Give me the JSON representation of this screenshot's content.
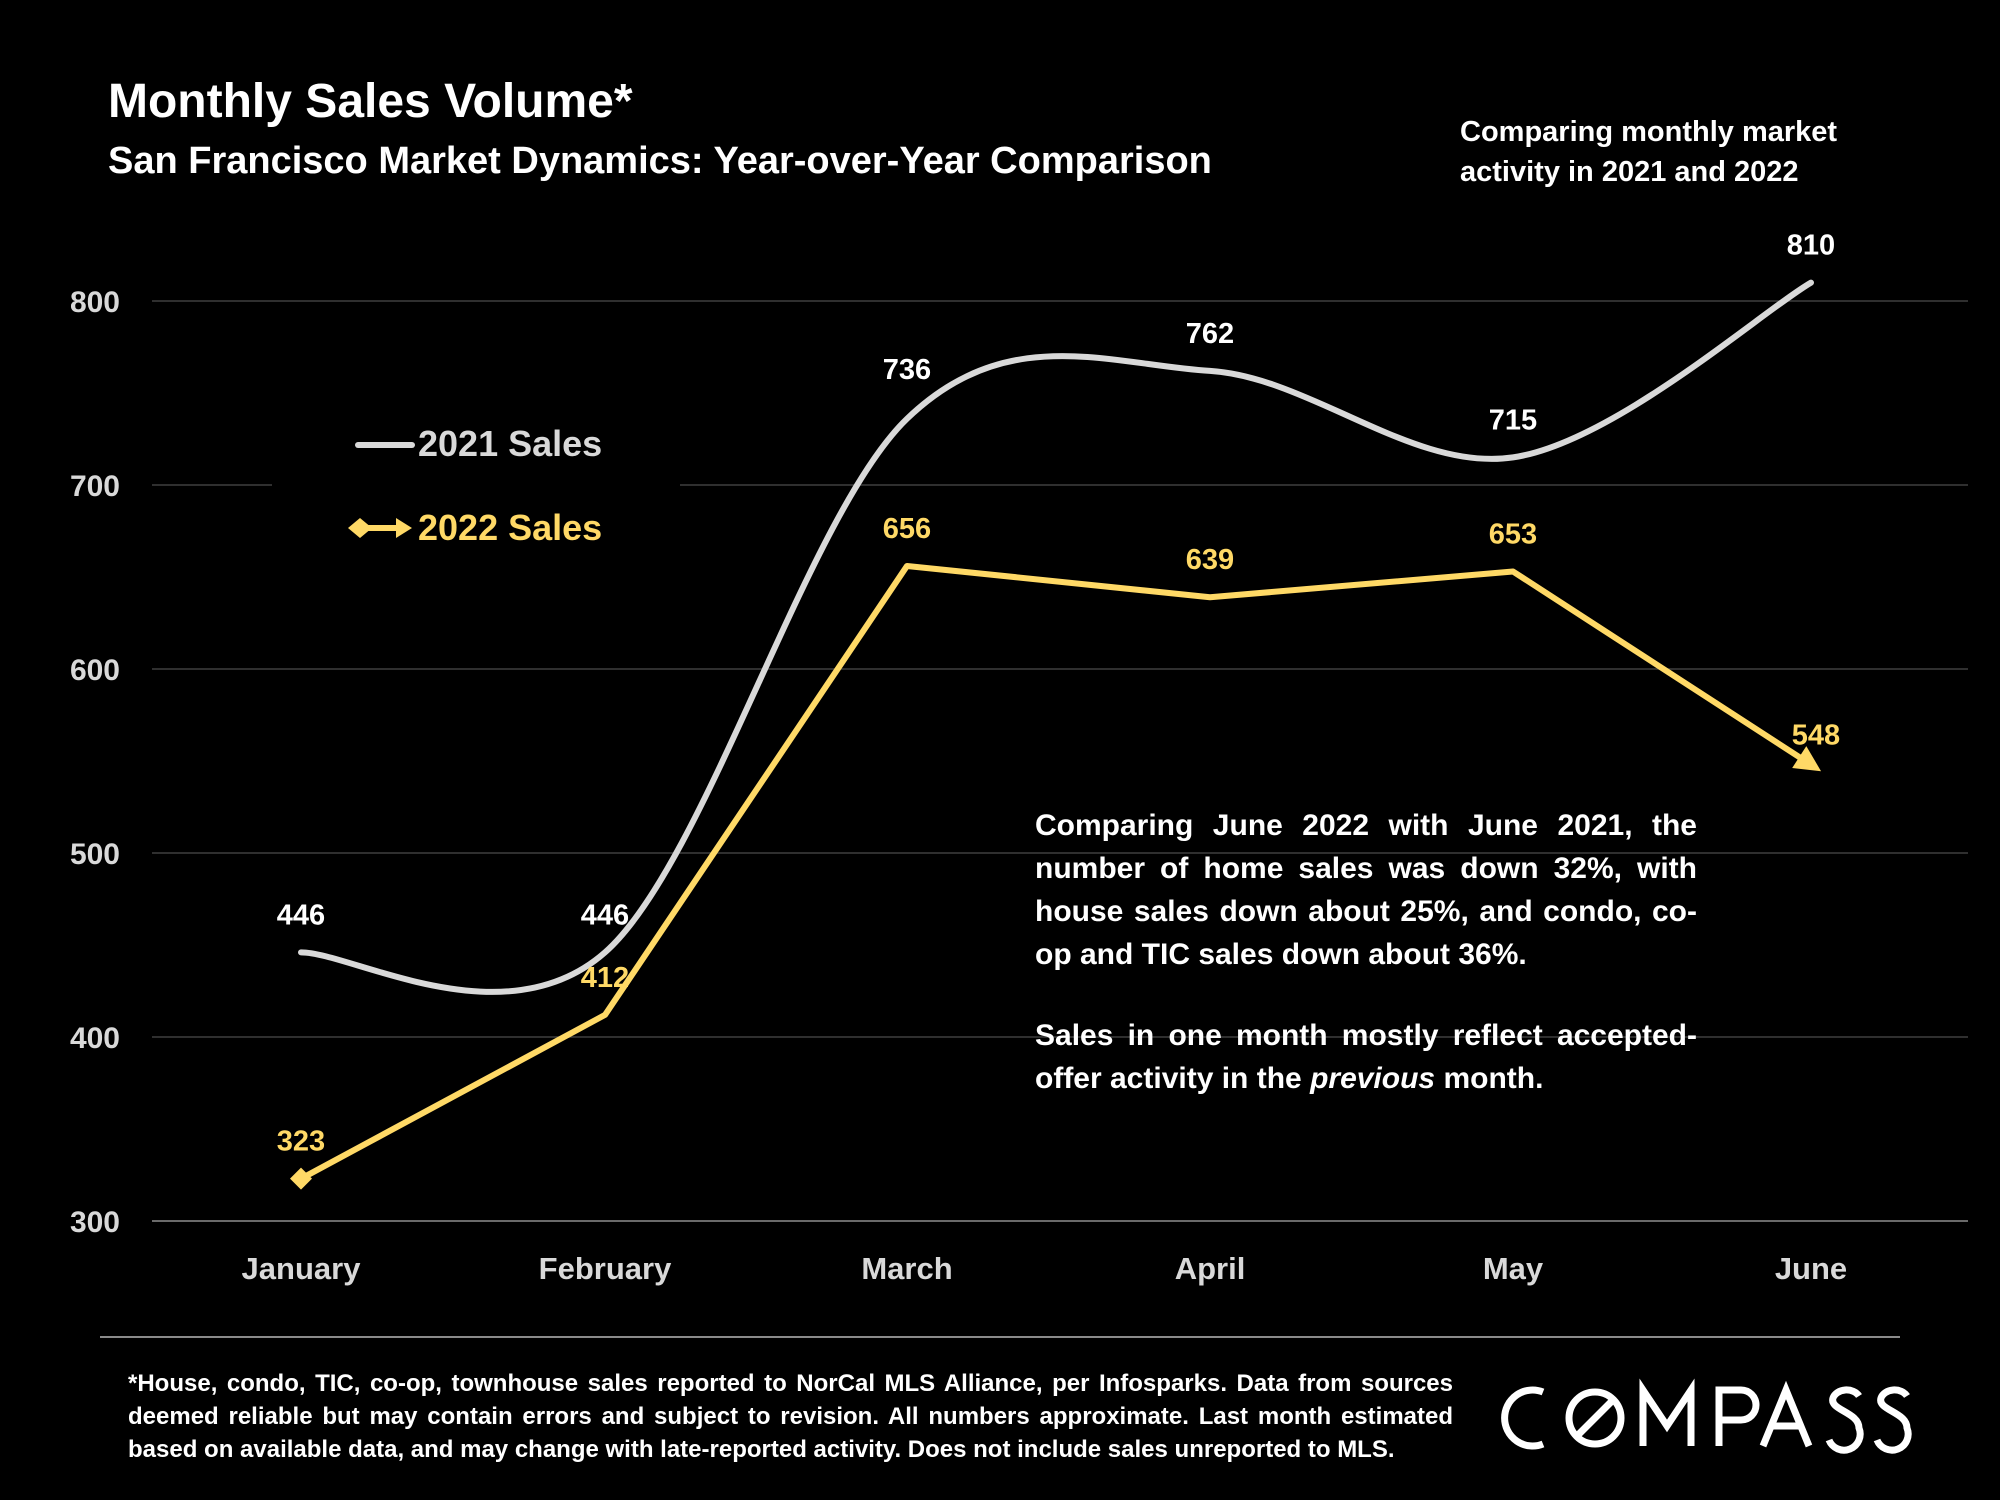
{
  "header": {
    "title": "Monthly Sales Volume*",
    "subtitle": "San Francisco Market Dynamics: Year-over-Year Comparison",
    "note": "Comparing monthly market activity in 2021 and 2022"
  },
  "annotation": {
    "paragraph1": "Comparing June 2022 with June 2021, the number of home sales was down 32%, with house sales down about 25%, and condo, co-op and TIC sales down about 36%.",
    "paragraph2_before": "Sales in one month mostly reflect accepted-offer activity in the ",
    "paragraph2_emphasis": "previous",
    "paragraph2_after": " month."
  },
  "footnote": "*House, condo, TIC, co-op, townhouse sales reported to NorCal MLS Alliance, per Infosparks. Data from sources deemed reliable but may contain errors and subject to revision. All numbers approximate. Last month estimated based on available data, and may change with late-reported activity. Does not include sales unreported to MLS.",
  "logo": {
    "text": "COMPASS"
  },
  "chart_data": {
    "type": "line",
    "categories": [
      "January",
      "February",
      "March",
      "April",
      "May",
      "June"
    ],
    "ylim": [
      300,
      800
    ],
    "yticks": [
      300,
      400,
      500,
      600,
      700,
      800
    ],
    "grid": true,
    "legend_position": "upper-left",
    "series": [
      {
        "name": "2021 Sales",
        "values": [
          446,
          446,
          736,
          762,
          715,
          810
        ],
        "color": "#d9d9d9",
        "smooth": true
      },
      {
        "name": "2022 Sales",
        "values": [
          323,
          412,
          656,
          639,
          653,
          548
        ],
        "color": "#ffd966",
        "smooth": false
      }
    ]
  }
}
